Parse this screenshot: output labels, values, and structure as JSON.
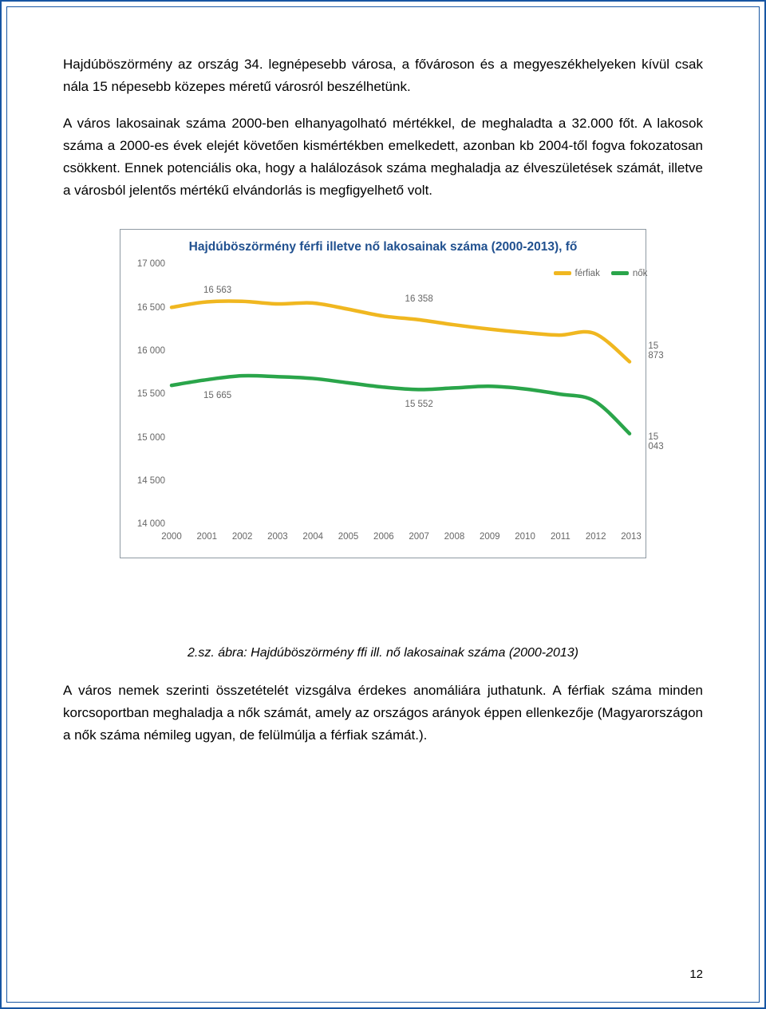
{
  "paragraphs": {
    "p1": "Hajdúböszörmény az ország 34. legnépesebb városa, a fővároson és a megyeszékhelyeken kívül csak nála 15 népesebb közepes méretű városról beszélhetünk.",
    "p2": "A város lakosainak száma 2000-ben elhanyagolható mértékkel, de meghaladta a 32.000 főt. A lakosok száma a 2000-es évek elejét követően kismértékben emelkedett, azonban kb 2004-től fogva fokozatosan csökkent. Ennek potenciális oka, hogy a halálozások száma meghaladja az élveszületések számát, illetve a városból jelentős mértékű elvándorlás is megfigyelhető volt.",
    "p3": "A város nemek szerinti összetételét vizsgálva érdekes anomáliára juthatunk. A férfiak száma minden korcsoportban meghaladja a nők számát, amely az országos arányok éppen ellenkezője (Magyarországon a nők száma némileg ugyan, de felülmúlja a férfiak számát.)."
  },
  "caption": "2.sz. ábra: Hajdúböszörmény ffi ill. nő lakosainak száma (2000-2013)",
  "page_number": "12",
  "chart": {
    "type": "line",
    "title": "Hajdúböszörmény férfi illetve nő lakosainak száma (2000-2013), fő",
    "background_color": "#ffffff",
    "border_color": "#8f9aa3",
    "title_color": "#20508f",
    "title_fontsize": 15.5,
    "axis_label_color": "#666666",
    "axis_label_fontsize": 11.5,
    "line_width": 4.5,
    "ylim": [
      14000,
      17000
    ],
    "ytick_step": 500,
    "y_ticks": [
      17000,
      16500,
      16000,
      15500,
      15000,
      14500,
      14000
    ],
    "x_categories": [
      "2000",
      "2001",
      "2002",
      "2003",
      "2004",
      "2005",
      "2006",
      "2007",
      "2008",
      "2009",
      "2010",
      "2011",
      "2012",
      "2013"
    ],
    "series": [
      {
        "name": "férfiak",
        "color": "#f0b720",
        "values": [
          16500,
          16563,
          16570,
          16540,
          16550,
          16480,
          16400,
          16358,
          16300,
          16250,
          16210,
          16180,
          16200,
          15873
        ]
      },
      {
        "name": "nők",
        "color": "#2aa54a",
        "values": [
          15600,
          15665,
          15710,
          15700,
          15680,
          15630,
          15580,
          15552,
          15570,
          15590,
          15560,
          15500,
          15420,
          15043
        ]
      }
    ],
    "annotations": [
      {
        "text": "16 563",
        "x_index": 1.3,
        "y": 16700
      },
      {
        "text": "16 358",
        "x_index": 7,
        "y": 16600
      },
      {
        "text": "15 873",
        "x_index": 13.7,
        "y": 16000
      },
      {
        "text": "15 665",
        "x_index": 1.3,
        "y": 15480
      },
      {
        "text": "15 552",
        "x_index": 7,
        "y": 15380
      },
      {
        "text": "15 043",
        "x_index": 13.7,
        "y": 14950
      }
    ],
    "legend": {
      "position_x_index": 10.8,
      "position_y": 16950,
      "items": [
        {
          "label": "férfiak",
          "color": "#f0b720"
        },
        {
          "label": "nők",
          "color": "#2aa54a"
        }
      ]
    }
  }
}
